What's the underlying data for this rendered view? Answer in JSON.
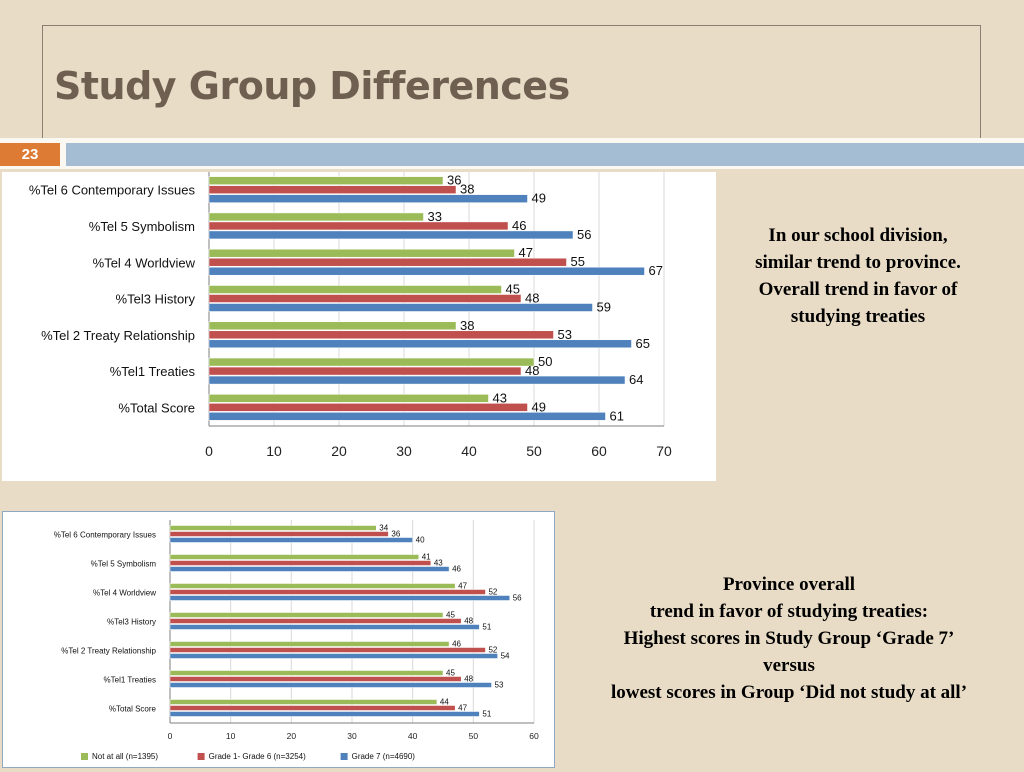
{
  "slide": {
    "title": "Study Group Differences",
    "number": "23"
  },
  "notes": {
    "school": [
      "In our school division,",
      "similar trend to province.",
      "Overall trend in favor of",
      "studying treaties"
    ],
    "province": [
      "Province overall",
      "trend in favor of studying treaties:",
      "Highest scores in Study Group ‘Grade 7’",
      "versus",
      "lowest scores in Group ‘Did not study at all’"
    ]
  },
  "colors": {
    "green": "#9bbb59",
    "red": "#c0504d",
    "blue": "#4f81bd"
  },
  "chart_data": [
    {
      "type": "bar",
      "orientation": "horizontal",
      "categories": [
        "%Tel 6 Contemporary Issues",
        "%Tel 5 Symbolism",
        "%Tel 4 Worldview",
        "%Tel3 History",
        "%Tel 2 Treaty Relationship",
        "%Tel1 Treaties",
        "%Total Score"
      ],
      "series": [
        {
          "values": [
            36,
            33,
            47,
            45,
            38,
            50,
            43
          ],
          "color": "#9bbb59"
        },
        {
          "values": [
            38,
            46,
            55,
            48,
            53,
            48,
            49
          ],
          "color": "#c0504d"
        },
        {
          "values": [
            49,
            56,
            67,
            59,
            65,
            64,
            61
          ],
          "color": "#4f81bd"
        }
      ],
      "xticks": [
        "0",
        "10",
        "20",
        "30",
        "40",
        "50",
        "60",
        "70"
      ],
      "xlim": [
        0,
        70
      ],
      "grid": true,
      "legend": "none"
    },
    {
      "type": "bar",
      "orientation": "horizontal",
      "categories": [
        "%Tel 6 Contemporary Issues",
        "%Tel 5 Symbolism",
        "%Tel 4 Worldview",
        "%Tel3 History",
        "%Tel 2 Treaty Relationship",
        "%Tel1 Treaties",
        "%Total Score"
      ],
      "series": [
        {
          "name": "Not at all (n=1395)",
          "values": [
            34,
            41,
            47,
            45,
            46,
            45,
            44
          ],
          "color": "#9bbb59"
        },
        {
          "name": "Grade 1- Grade 6 (n=3254)",
          "values": [
            36,
            43,
            52,
            48,
            52,
            48,
            47
          ],
          "color": "#c0504d"
        },
        {
          "name": "Grade 7 (n=4690)",
          "values": [
            40,
            46,
            56,
            51,
            54,
            53,
            51
          ],
          "color": "#4f81bd"
        }
      ],
      "xticks": [
        "0",
        "10",
        "20",
        "30",
        "40",
        "50",
        "60"
      ],
      "xlim": [
        0,
        60
      ],
      "grid": true,
      "legend": "bottom"
    }
  ]
}
